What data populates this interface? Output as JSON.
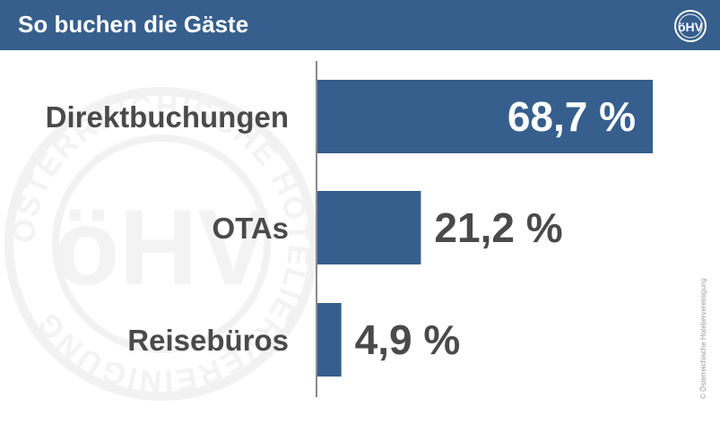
{
  "header": {
    "title": "So buchen die Gäste",
    "logo_icon": "oehv-logo-icon",
    "background": "#365f8d"
  },
  "watermark": {
    "ring_text": "ÖSTERREICHISCHE HOTELIERVEREINIGUNG",
    "logo_text": "öHV"
  },
  "copyright": "© Österreichische Hoteliervereinigung",
  "chart_data": {
    "type": "bar",
    "orientation": "horizontal",
    "categories": [
      "Direktbuchungen",
      "OTAs",
      "Reisebüros"
    ],
    "values": [
      68.7,
      21.2,
      4.9
    ],
    "value_labels": [
      "68,7 %",
      "21,2 %",
      "4,9 %"
    ],
    "unit": "%",
    "bar_color": "#365f8d",
    "xlim": [
      0,
      72
    ],
    "grid": false,
    "legend": "none"
  }
}
